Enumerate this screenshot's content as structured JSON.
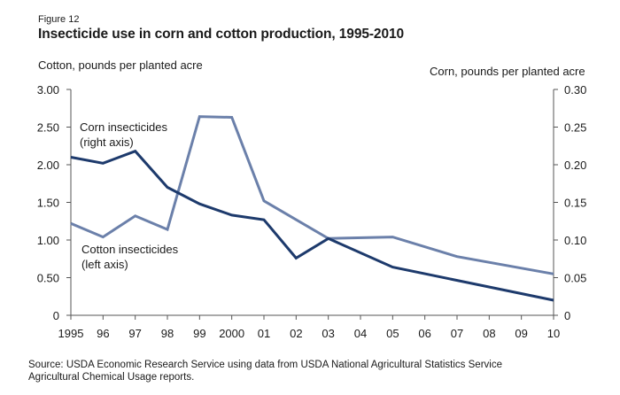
{
  "figure_label": "Figure 12",
  "title": "Insecticide use in corn and cotton production, 1995-2010",
  "source_line1": "Source: USDA Economic Research Service using data from USDA National Agricultural Statistics Service",
  "source_line2": "Agricultural Chemical Usage reports.",
  "colors": {
    "corn": "#1d3a6c",
    "cotton": "#6b80aa",
    "axis": "#555555"
  },
  "chart_data": {
    "type": "line",
    "title": "Insecticide use in corn and cotton production, 1995-2010",
    "xlabel": "",
    "ylabel_left": "Cotton, pounds per planted acre",
    "ylabel_right": "Corn, pounds per planted acre",
    "x": [
      1995,
      1996,
      1997,
      1998,
      1999,
      2000,
      2001,
      2002,
      2003,
      2004,
      2005,
      2006,
      2007,
      2008,
      2009,
      2010
    ],
    "x_tick_labels": [
      "1995",
      "96",
      "97",
      "98",
      "99",
      "2000",
      "01",
      "02",
      "03",
      "04",
      "05",
      "06",
      "07",
      "08",
      "09",
      "10"
    ],
    "ylim_left": [
      0,
      3.0
    ],
    "ylim_right": [
      0,
      0.3
    ],
    "y_ticks_left": [
      "0",
      "0.50",
      "1.00",
      "1.50",
      "2.00",
      "2.50",
      "3.00"
    ],
    "y_ticks_left_values": [
      0,
      0.5,
      1.0,
      1.5,
      2.0,
      2.5,
      3.0
    ],
    "y_ticks_right": [
      "0",
      "0.05",
      "0.10",
      "0.15",
      "0.20",
      "0.25",
      "0.30"
    ],
    "y_ticks_right_values": [
      0,
      0.05,
      0.1,
      0.15,
      0.2,
      0.25,
      0.3
    ],
    "grid": false,
    "series": [
      {
        "name": "Corn insecticides",
        "label_line1": "Corn insecticides",
        "label_line2": "(right axis)",
        "axis": "right",
        "values": [
          0.21,
          0.202,
          0.218,
          0.17,
          0.148,
          0.133,
          0.127,
          0.076,
          0.102,
          null,
          0.064,
          null,
          null,
          null,
          null,
          0.02
        ]
      },
      {
        "name": "Cotton insecticides",
        "label_line1": "Cotton insecticides",
        "label_line2": "(left axis)",
        "axis": "left",
        "values": [
          1.22,
          1.04,
          1.32,
          1.14,
          2.64,
          2.63,
          1.52,
          null,
          1.02,
          null,
          1.04,
          null,
          0.78,
          null,
          null,
          0.55
        ]
      }
    ]
  }
}
